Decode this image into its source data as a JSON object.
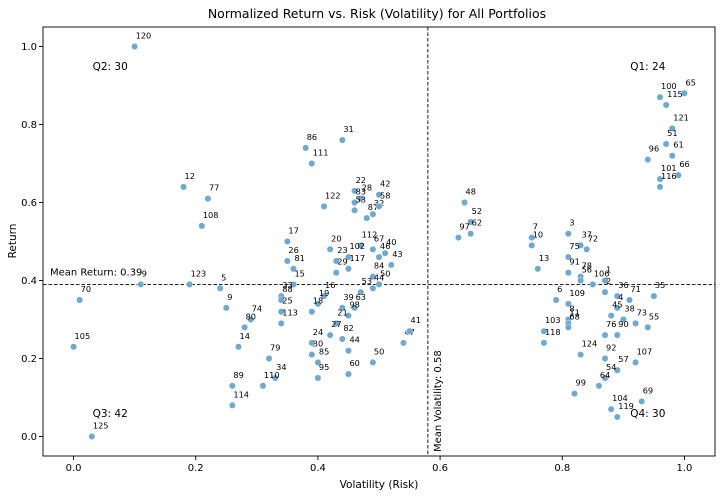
{
  "chart_data": {
    "type": "scatter",
    "title": "Normalized Return vs. Risk (Volatility) for All Portfolios",
    "xlabel": "Volatility (Risk)",
    "ylabel": "Return",
    "xlim": [
      -0.05,
      1.05
    ],
    "ylim": [
      -0.05,
      1.05
    ],
    "xticks": [
      "0.0",
      "0.2",
      "0.4",
      "0.6",
      "0.8",
      "1.0"
    ],
    "yticks": [
      "0.0",
      "0.2",
      "0.4",
      "0.6",
      "0.8",
      "1.0"
    ],
    "grid": false,
    "point_color": "#6fa8d0",
    "mean_return": 0.39,
    "mean_volatility": 0.58,
    "mean_return_label": "Mean Return: 0.39",
    "mean_volatility_label": "Mean Volatility: 0.58",
    "quadrants": [
      {
        "label": "Q1: 24",
        "x": 0.94,
        "y": 0.95
      },
      {
        "label": "Q2: 30",
        "x": 0.06,
        "y": 0.95
      },
      {
        "label": "Q3: 42",
        "x": 0.06,
        "y": 0.06
      },
      {
        "label": "Q4: 30",
        "x": 0.94,
        "y": 0.06
      }
    ],
    "points": [
      {
        "id": "120",
        "x": 0.1,
        "y": 1.0
      },
      {
        "id": "12",
        "x": 0.18,
        "y": 0.64
      },
      {
        "id": "77",
        "x": 0.22,
        "y": 0.61
      },
      {
        "id": "108",
        "x": 0.21,
        "y": 0.54
      },
      {
        "id": "123",
        "x": 0.19,
        "y": 0.39
      },
      {
        "id": "9",
        "x": 0.11,
        "y": 0.39
      },
      {
        "id": "70",
        "x": 0.01,
        "y": 0.35
      },
      {
        "id": "105",
        "x": 0.0,
        "y": 0.23
      },
      {
        "id": "125",
        "x": 0.03,
        "y": 0.0
      },
      {
        "id": "5",
        "x": 0.24,
        "y": 0.38
      },
      {
        "id": "9",
        "x": 0.25,
        "y": 0.33
      },
      {
        "id": "74",
        "x": 0.29,
        "y": 0.3
      },
      {
        "id": "80",
        "x": 0.28,
        "y": 0.28
      },
      {
        "id": "14",
        "x": 0.27,
        "y": 0.23
      },
      {
        "id": "79",
        "x": 0.32,
        "y": 0.2
      },
      {
        "id": "34",
        "x": 0.33,
        "y": 0.15
      },
      {
        "id": "110",
        "x": 0.31,
        "y": 0.13
      },
      {
        "id": "89",
        "x": 0.26,
        "y": 0.13
      },
      {
        "id": "114",
        "x": 0.26,
        "y": 0.08
      },
      {
        "id": "86",
        "x": 0.38,
        "y": 0.74
      },
      {
        "id": "111",
        "x": 0.39,
        "y": 0.7
      },
      {
        "id": "31",
        "x": 0.44,
        "y": 0.76
      },
      {
        "id": "122",
        "x": 0.41,
        "y": 0.59
      },
      {
        "id": "22",
        "x": 0.46,
        "y": 0.63
      },
      {
        "id": "28",
        "x": 0.47,
        "y": 0.61
      },
      {
        "id": "83",
        "x": 0.46,
        "y": 0.6
      },
      {
        "id": "53",
        "x": 0.46,
        "y": 0.58
      },
      {
        "id": "42",
        "x": 0.5,
        "y": 0.62
      },
      {
        "id": "32",
        "x": 0.49,
        "y": 0.57
      },
      {
        "id": "87",
        "x": 0.48,
        "y": 0.56
      },
      {
        "id": "58",
        "x": 0.5,
        "y": 0.59
      },
      {
        "id": "17",
        "x": 0.35,
        "y": 0.5
      },
      {
        "id": "26",
        "x": 0.35,
        "y": 0.45
      },
      {
        "id": "81",
        "x": 0.36,
        "y": 0.43
      },
      {
        "id": "20",
        "x": 0.42,
        "y": 0.48
      },
      {
        "id": "112",
        "x": 0.47,
        "y": 0.49
      },
      {
        "id": "102",
        "x": 0.45,
        "y": 0.46
      },
      {
        "id": "67",
        "x": 0.49,
        "y": 0.48
      },
      {
        "id": "40",
        "x": 0.51,
        "y": 0.47
      },
      {
        "id": "46",
        "x": 0.5,
        "y": 0.46
      },
      {
        "id": "23",
        "x": 0.43,
        "y": 0.45
      },
      {
        "id": "29",
        "x": 0.43,
        "y": 0.42
      },
      {
        "id": "117",
        "x": 0.45,
        "y": 0.43
      },
      {
        "id": "43",
        "x": 0.52,
        "y": 0.44
      },
      {
        "id": "84",
        "x": 0.49,
        "y": 0.41
      },
      {
        "id": "50",
        "x": 0.5,
        "y": 0.39
      },
      {
        "id": "44",
        "x": 0.49,
        "y": 0.38
      },
      {
        "id": "15",
        "x": 0.36,
        "y": 0.39
      },
      {
        "id": "33",
        "x": 0.34,
        "y": 0.36
      },
      {
        "id": "88",
        "x": 0.34,
        "y": 0.35
      },
      {
        "id": "16",
        "x": 0.41,
        "y": 0.36
      },
      {
        "id": "19",
        "x": 0.4,
        "y": 0.34
      },
      {
        "id": "53",
        "x": 0.47,
        "y": 0.37
      },
      {
        "id": "63",
        "x": 0.46,
        "y": 0.33
      },
      {
        "id": "39",
        "x": 0.44,
        "y": 0.33
      },
      {
        "id": "25",
        "x": 0.34,
        "y": 0.32
      },
      {
        "id": "113",
        "x": 0.34,
        "y": 0.29
      },
      {
        "id": "18",
        "x": 0.39,
        "y": 0.32
      },
      {
        "id": "98",
        "x": 0.45,
        "y": 0.31
      },
      {
        "id": "21",
        "x": 0.43,
        "y": 0.29
      },
      {
        "id": "27",
        "x": 0.42,
        "y": 0.26
      },
      {
        "id": "82",
        "x": 0.44,
        "y": 0.25
      },
      {
        "id": "24",
        "x": 0.39,
        "y": 0.24
      },
      {
        "id": "30",
        "x": 0.39,
        "y": 0.21
      },
      {
        "id": "85",
        "x": 0.4,
        "y": 0.19
      },
      {
        "id": "44",
        "x": 0.45,
        "y": 0.22
      },
      {
        "id": "95",
        "x": 0.4,
        "y": 0.15
      },
      {
        "id": "60",
        "x": 0.45,
        "y": 0.16
      },
      {
        "id": "50",
        "x": 0.49,
        "y": 0.19
      },
      {
        "id": "47",
        "x": 0.54,
        "y": 0.24
      },
      {
        "id": "41",
        "x": 0.55,
        "y": 0.27
      },
      {
        "id": "48",
        "x": 0.64,
        "y": 0.6
      },
      {
        "id": "52",
        "x": 0.65,
        "y": 0.55
      },
      {
        "id": "62",
        "x": 0.65,
        "y": 0.52
      },
      {
        "id": "97",
        "x": 0.63,
        "y": 0.51
      },
      {
        "id": "7",
        "x": 0.75,
        "y": 0.51
      },
      {
        "id": "10",
        "x": 0.75,
        "y": 0.49
      },
      {
        "id": "3",
        "x": 0.81,
        "y": 0.52
      },
      {
        "id": "37",
        "x": 0.83,
        "y": 0.49
      },
      {
        "id": "72",
        "x": 0.84,
        "y": 0.48
      },
      {
        "id": "75",
        "x": 0.81,
        "y": 0.46
      },
      {
        "id": "13",
        "x": 0.76,
        "y": 0.43
      },
      {
        "id": "91",
        "x": 0.81,
        "y": 0.42
      },
      {
        "id": "78",
        "x": 0.83,
        "y": 0.41
      },
      {
        "id": "56",
        "x": 0.83,
        "y": 0.4
      },
      {
        "id": "106",
        "x": 0.85,
        "y": 0.39
      },
      {
        "id": "1",
        "x": 0.87,
        "y": 0.4
      },
      {
        "id": "2",
        "x": 0.87,
        "y": 0.37
      },
      {
        "id": "6",
        "x": 0.79,
        "y": 0.35
      },
      {
        "id": "109",
        "x": 0.81,
        "y": 0.34
      },
      {
        "id": "36",
        "x": 0.89,
        "y": 0.36
      },
      {
        "id": "71",
        "x": 0.91,
        "y": 0.35
      },
      {
        "id": "35",
        "x": 0.95,
        "y": 0.36
      },
      {
        "id": "4",
        "x": 0.89,
        "y": 0.33
      },
      {
        "id": "45",
        "x": 0.88,
        "y": 0.31
      },
      {
        "id": "38",
        "x": 0.9,
        "y": 0.3
      },
      {
        "id": "73",
        "x": 0.92,
        "y": 0.29
      },
      {
        "id": "55",
        "x": 0.94,
        "y": 0.28
      },
      {
        "id": "8",
        "x": 0.81,
        "y": 0.3
      },
      {
        "id": "11",
        "x": 0.81,
        "y": 0.29
      },
      {
        "id": "68",
        "x": 0.81,
        "y": 0.28
      },
      {
        "id": "103",
        "x": 0.77,
        "y": 0.27
      },
      {
        "id": "76",
        "x": 0.87,
        "y": 0.26
      },
      {
        "id": "90",
        "x": 0.89,
        "y": 0.26
      },
      {
        "id": "118",
        "x": 0.77,
        "y": 0.24
      },
      {
        "id": "124",
        "x": 0.83,
        "y": 0.21
      },
      {
        "id": "92",
        "x": 0.87,
        "y": 0.2
      },
      {
        "id": "107",
        "x": 0.92,
        "y": 0.19
      },
      {
        "id": "57",
        "x": 0.89,
        "y": 0.17
      },
      {
        "id": "54",
        "x": 0.87,
        "y": 0.15
      },
      {
        "id": "64",
        "x": 0.86,
        "y": 0.13
      },
      {
        "id": "99",
        "x": 0.82,
        "y": 0.11
      },
      {
        "id": "104",
        "x": 0.88,
        "y": 0.07
      },
      {
        "id": "119",
        "x": 0.89,
        "y": 0.05
      },
      {
        "id": "69",
        "x": 0.93,
        "y": 0.09
      },
      {
        "id": "65",
        "x": 1.0,
        "y": 0.88
      },
      {
        "id": "100",
        "x": 0.96,
        "y": 0.87
      },
      {
        "id": "115",
        "x": 0.97,
        "y": 0.85
      },
      {
        "id": "121",
        "x": 0.98,
        "y": 0.79
      },
      {
        "id": "51",
        "x": 0.97,
        "y": 0.75
      },
      {
        "id": "61",
        "x": 0.98,
        "y": 0.72
      },
      {
        "id": "96",
        "x": 0.94,
        "y": 0.71
      },
      {
        "id": "66",
        "x": 0.99,
        "y": 0.67
      },
      {
        "id": "101",
        "x": 0.96,
        "y": 0.66
      },
      {
        "id": "116",
        "x": 0.96,
        "y": 0.64
      }
    ]
  }
}
